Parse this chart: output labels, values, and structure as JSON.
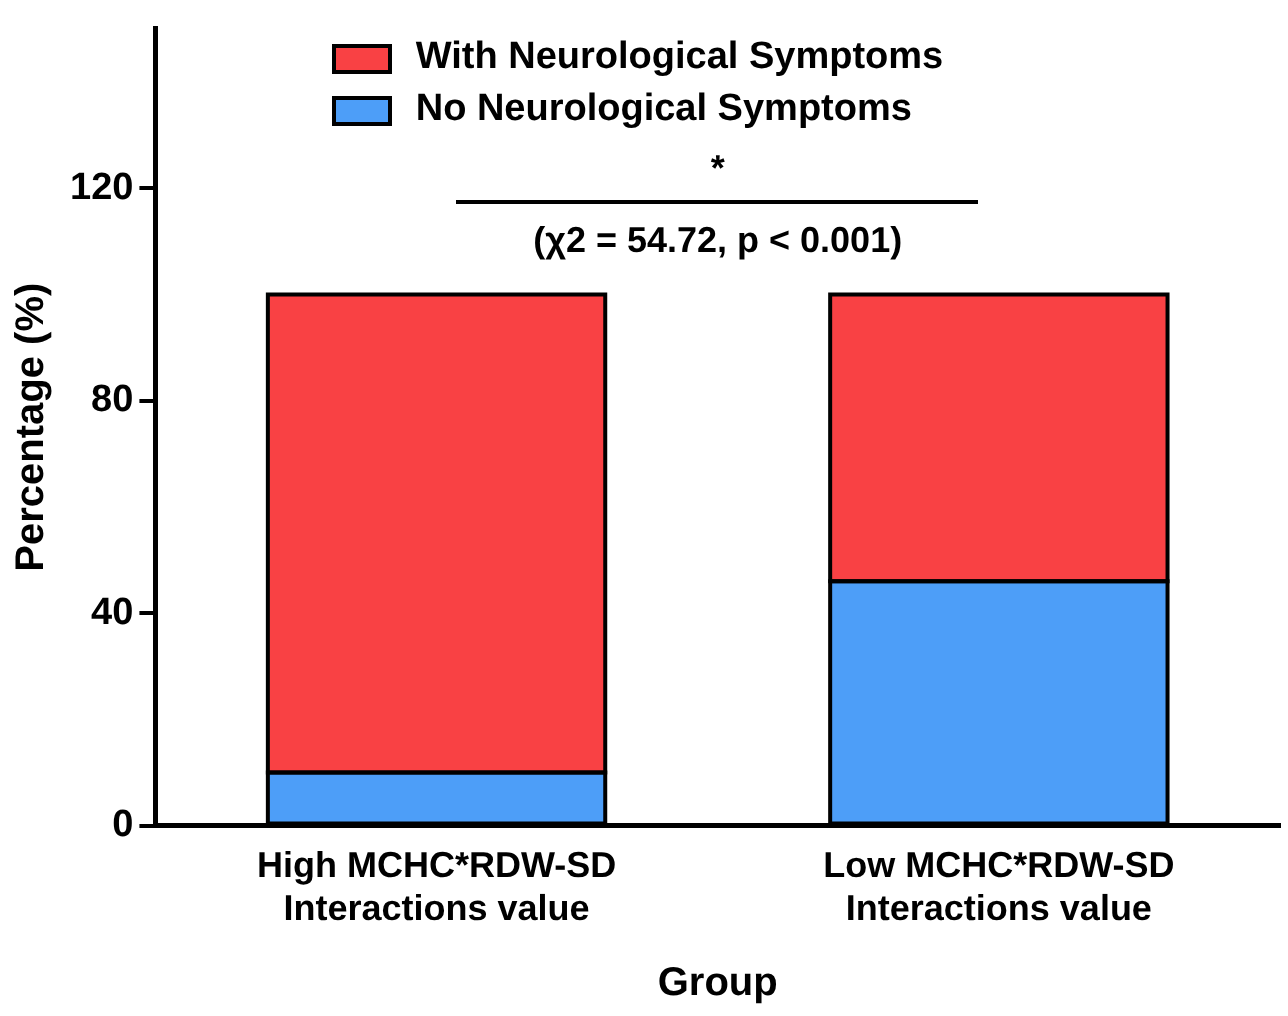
{
  "chart_data": {
    "type": "bar",
    "stacked": true,
    "xlabel": "Group",
    "ylabel": "Percentage (%)",
    "categories": [
      "High MCHC*RDW-SD Interactions value",
      "Low MCHC*RDW-SD Interactions value"
    ],
    "series": [
      {
        "name": "No Neurological Symptoms",
        "color": "#4d9ef8",
        "values": [
          10,
          46
        ]
      },
      {
        "name": "With Neurological Symptoms",
        "color": "#f94144",
        "values": [
          90,
          54
        ]
      }
    ],
    "ylim": [
      0,
      150
    ],
    "yticks": [
      0,
      40,
      80,
      120
    ],
    "grid": false,
    "legend": "top",
    "annotations": [
      "*",
      "(χ2 = 54.72, p < 0.001)"
    ]
  }
}
